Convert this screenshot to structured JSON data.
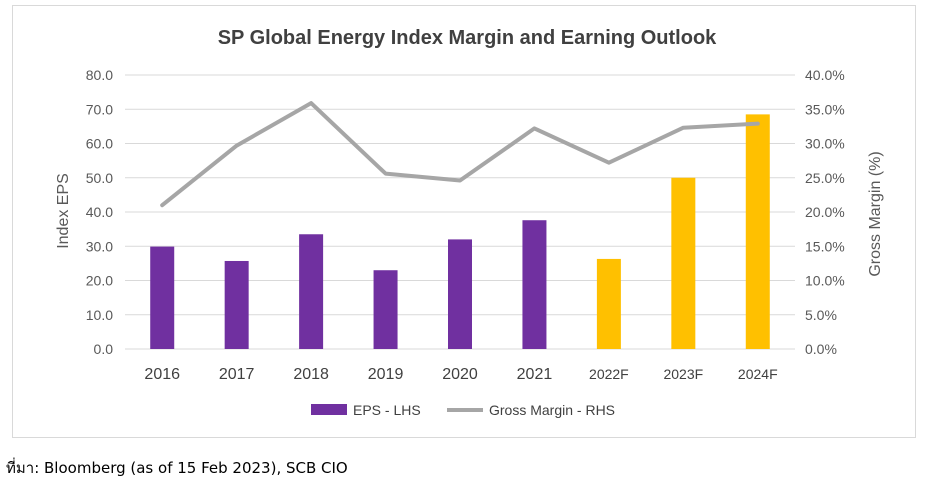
{
  "source_note": "ที่มา: Bloomberg (as of 15 Feb 2023), SCB CIO",
  "colors": {
    "actual_bar": "#7030a0",
    "forecast_bar": "#ffc000",
    "margin_line": "#a6a6a6",
    "grid": "#d9d9d9"
  },
  "chart_data": {
    "type": "bar",
    "title": "SP Global Energy Index Margin and Earning Outlook",
    "categories": [
      "2016",
      "2017",
      "2018",
      "2019",
      "2020",
      "2021",
      "2022F",
      "2023F",
      "2024F"
    ],
    "forecast_flags": [
      false,
      false,
      false,
      false,
      false,
      false,
      true,
      true,
      true
    ],
    "series": [
      {
        "name": "EPS - LHS",
        "kind": "bar",
        "axis": "left",
        "values": [
          29.9,
          25.7,
          33.5,
          23.0,
          32.0,
          37.6,
          26.3,
          50.0,
          68.5
        ]
      },
      {
        "name": "Gross Margin - RHS",
        "kind": "line",
        "axis": "right",
        "values": [
          21.0,
          29.7,
          35.9,
          25.6,
          24.6,
          32.2,
          27.2,
          32.3,
          32.9
        ]
      }
    ],
    "ylabel": "Index EPS",
    "y2label": "Gross Margin (%)",
    "ylim": [
      0,
      80
    ],
    "y2lim": [
      0,
      40
    ],
    "yticks": [
      "0.0",
      "10.0",
      "20.0",
      "30.0",
      "40.0",
      "50.0",
      "60.0",
      "70.0",
      "80.0"
    ],
    "y2ticks": [
      "0.0%",
      "5.0%",
      "10.0%",
      "15.0%",
      "20.0%",
      "25.0%",
      "30.0%",
      "35.0%",
      "40.0%"
    ],
    "grid": true,
    "legend_position": "bottom"
  }
}
